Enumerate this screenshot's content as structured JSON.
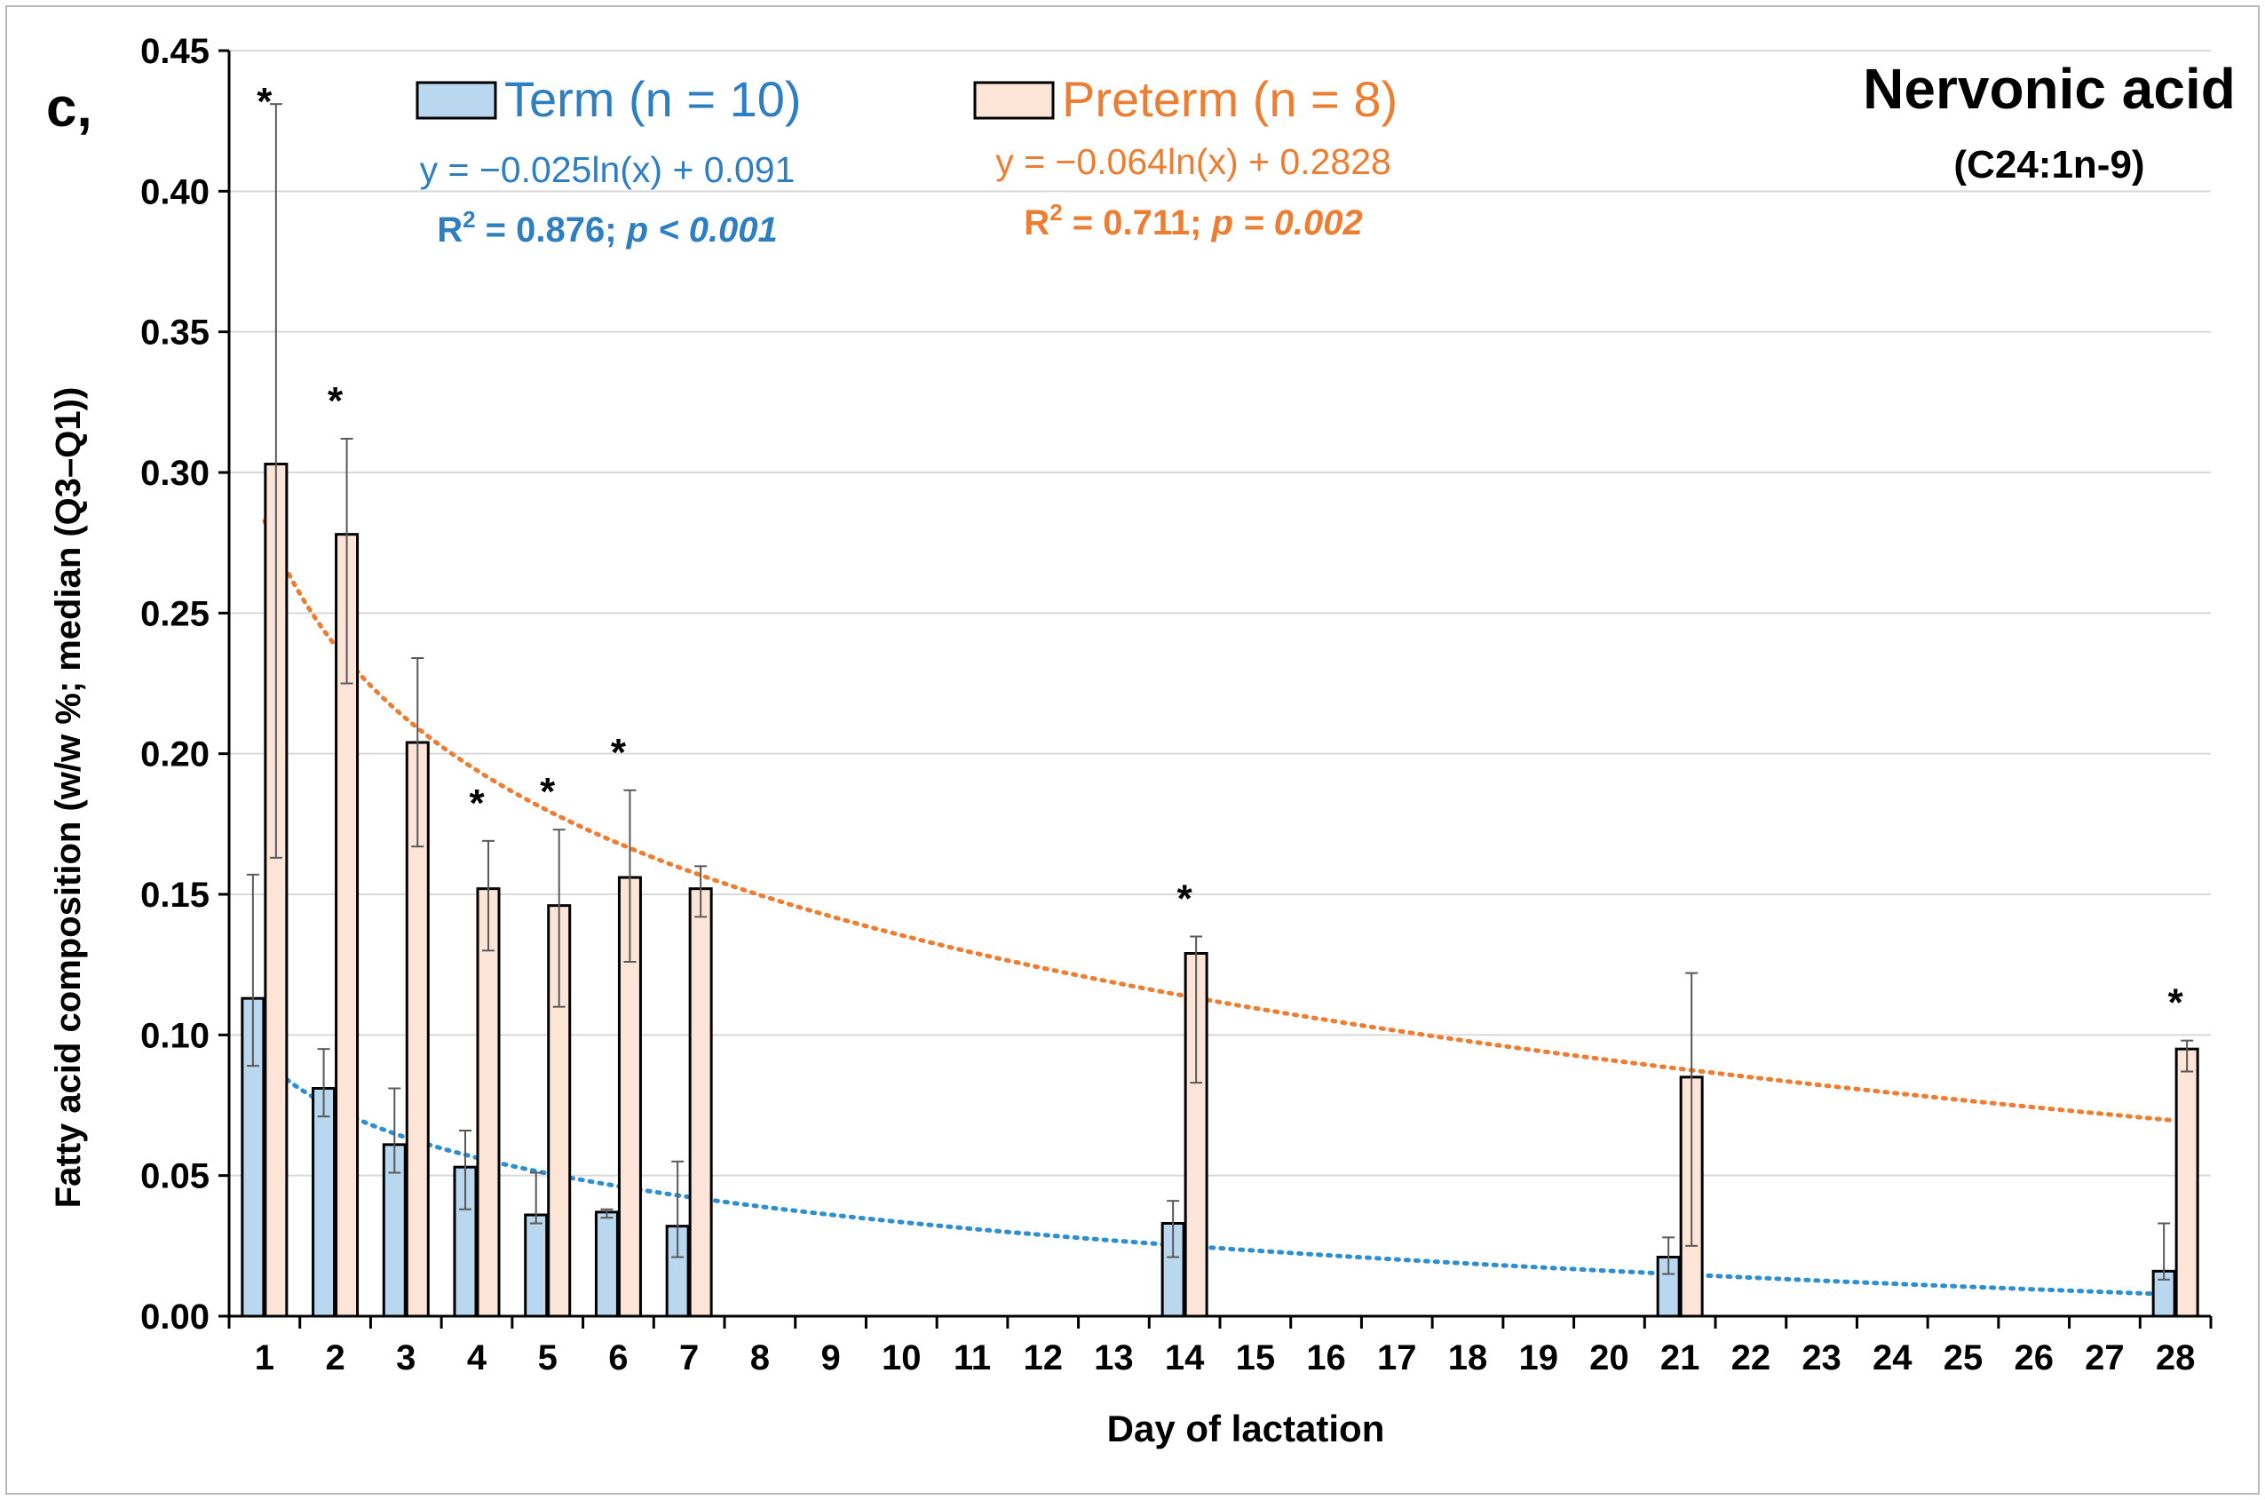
{
  "chart_data": {
    "type": "bar",
    "panel_label": "c,",
    "title": "Nervonic acid",
    "subtitle": "(C24:1n-9)",
    "xlabel": "Day of lactation",
    "ylabel": "Fatty acid composition (w/w %; median (Q3–Q1))",
    "ylim": [
      0,
      0.45
    ],
    "ytick_step": 0.05,
    "ytick_labels": [
      "0.00",
      "0.05",
      "0.10",
      "0.15",
      "0.20",
      "0.25",
      "0.30",
      "0.35",
      "0.40",
      "0.45"
    ],
    "categories": [
      "1",
      "2",
      "3",
      "4",
      "5",
      "6",
      "7",
      "8",
      "9",
      "10",
      "11",
      "12",
      "13",
      "14",
      "15",
      "16",
      "17",
      "18",
      "19",
      "20",
      "21",
      "22",
      "23",
      "24",
      "25",
      "26",
      "27",
      "28"
    ],
    "grid": true,
    "series": [
      {
        "name": "Term (n = 10)",
        "color": "#b9d7ee",
        "text_color": "#2e7fc1",
        "trend_color": "#2e8fd0",
        "days": [
          1,
          2,
          3,
          4,
          5,
          6,
          7,
          14,
          21,
          28
        ],
        "medians": [
          0.113,
          0.081,
          0.061,
          0.053,
          0.036,
          0.037,
          0.032,
          0.033,
          0.021,
          0.016
        ],
        "q3": [
          0.157,
          0.095,
          0.081,
          0.066,
          0.051,
          0.038,
          0.055,
          0.041,
          0.028,
          0.033
        ],
        "q1": [
          0.089,
          0.071,
          0.051,
          0.038,
          0.033,
          0.035,
          0.021,
          0.021,
          0.015,
          0.013
        ],
        "trend": {
          "a": -0.025,
          "b": 0.091
        },
        "equation": "y = −0.025ln(x) + 0.091",
        "r2_label": "R",
        "r2_sup": "2",
        "r2_value": " = 0.876; ",
        "p_value": "p < 0.001"
      },
      {
        "name": "Preterm (n = 8)",
        "color": "#fce4d6",
        "text_color": "#ed7d31",
        "trend_color": "#ed7d31",
        "days": [
          1,
          2,
          3,
          4,
          5,
          6,
          7,
          14,
          21,
          28
        ],
        "medians": [
          0.303,
          0.278,
          0.204,
          0.152,
          0.146,
          0.156,
          0.152,
          0.129,
          0.085,
          0.095
        ],
        "q3": [
          0.431,
          0.312,
          0.234,
          0.169,
          0.173,
          0.187,
          0.16,
          0.135,
          0.122,
          0.098
        ],
        "q1": [
          0.163,
          0.225,
          0.167,
          0.13,
          0.11,
          0.126,
          0.142,
          0.083,
          0.025,
          0.087
        ],
        "trend": {
          "a": -0.064,
          "b": 0.2828
        },
        "equation": "y = −0.064ln(x) + 0.2828",
        "r2_label": "R",
        "r2_sup": "2",
        "r2_value": " = 0.711; ",
        "p_value": "p = 0.002"
      }
    ],
    "significance": [
      {
        "day": 1,
        "label": "*"
      },
      {
        "day": 2,
        "label": "*"
      },
      {
        "day": 4,
        "label": "*"
      },
      {
        "day": 5,
        "label": "*"
      },
      {
        "day": 6,
        "label": "*"
      },
      {
        "day": 14,
        "label": "*"
      },
      {
        "day": 28,
        "label": "*"
      }
    ]
  }
}
